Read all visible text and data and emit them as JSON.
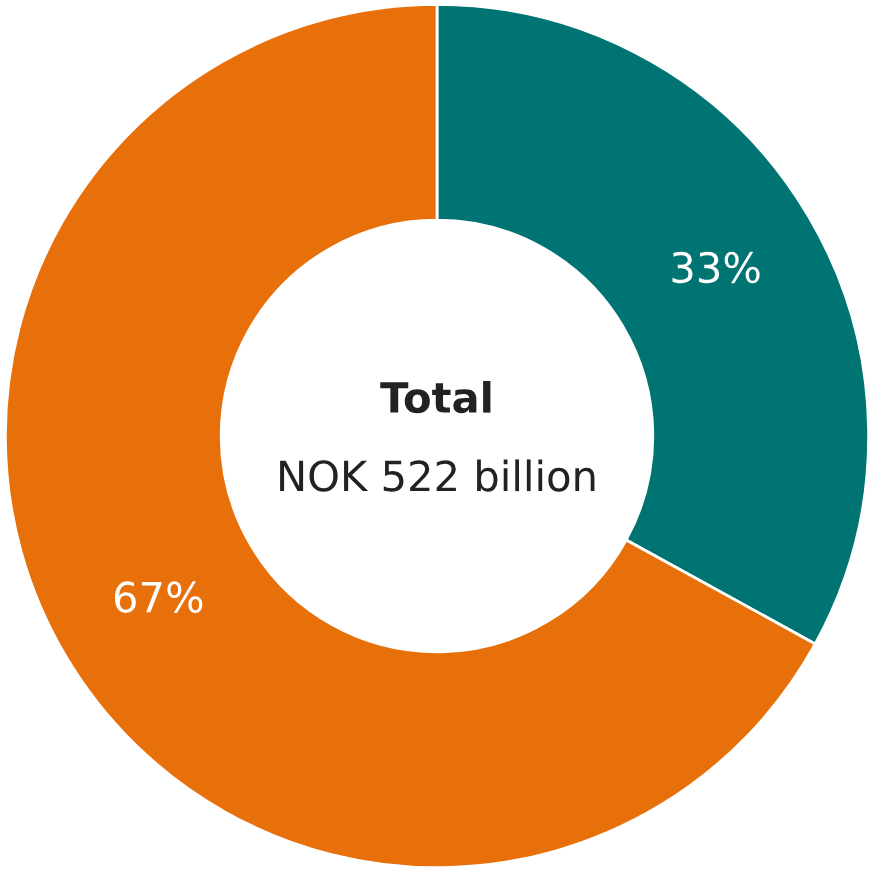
{
  "chart_data": {
    "type": "donut",
    "categories": [
      null,
      null
    ],
    "values": [
      33,
      67
    ],
    "colors": [
      "#007373",
      "#e8700a"
    ],
    "value_labels": [
      "33%",
      "67%"
    ],
    "annotations": [
      "Total",
      "NOK 522 billion"
    ]
  }
}
